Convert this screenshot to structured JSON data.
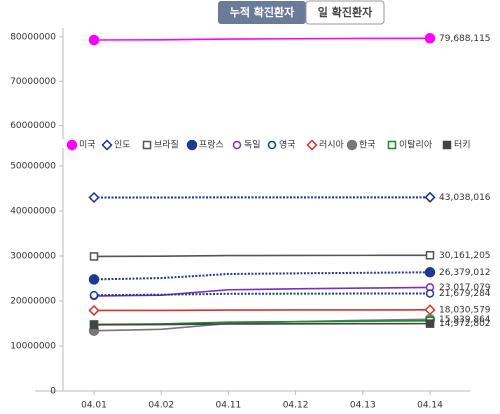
{
  "buttons": [
    "누적 확진환자",
    "일 확진환자"
  ],
  "chart_data": {
    "type": "line",
    "categories": [
      "04.01",
      "04.02",
      "04.11",
      "04.12",
      "04.13",
      "04.14"
    ],
    "ylim": [
      0,
      54000000
    ],
    "yticks": [
      0,
      10000000,
      20000000,
      30000000,
      40000000,
      50000000
    ],
    "y2lim": [
      57000000,
      82000000
    ],
    "y2ticks": [
      60000000,
      70000000,
      80000000
    ],
    "series": [
      {
        "name": "미국",
        "color": "#ff00ff",
        "marker": "circle-filled",
        "line_style": "solid",
        "axis": "y2",
        "values": [
          79300000,
          79350000,
          79500000,
          79580000,
          79640000,
          79688115
        ],
        "value_labels": [
          null,
          null,
          null,
          null,
          null,
          "79,688,115"
        ]
      },
      {
        "name": "인도",
        "color": "#1a2fa0",
        "marker": "diamond-hollow",
        "line_style": "dotted",
        "values": [
          43000000,
          43005000,
          43030000,
          43033000,
          43036000,
          43038016
        ],
        "value_labels": [
          null,
          null,
          null,
          null,
          null,
          "43,038,016"
        ]
      },
      {
        "name": "브라질",
        "color": "#555555",
        "marker": "square-hollow",
        "line_style": "solid",
        "values": [
          29900000,
          29950000,
          30100000,
          30120000,
          30140000,
          30161205
        ],
        "value_labels": [
          null,
          null,
          null,
          null,
          null,
          "30,161,205"
        ]
      },
      {
        "name": "프랑스",
        "color": "#1f3a93",
        "marker": "circle-filled",
        "line_style": "dotted",
        "values": [
          24800000,
          25100000,
          26000000,
          26150000,
          26260000,
          26379012
        ],
        "value_labels": [
          null,
          null,
          null,
          null,
          null,
          "26,379,012"
        ]
      },
      {
        "name": "독일",
        "color": "#7b2fbf",
        "marker": "circle-hollow",
        "line_style": "solid",
        "values": [
          21100000,
          21300000,
          22500000,
          22700000,
          22870000,
          23017079
        ],
        "value_labels": [
          null,
          null,
          null,
          null,
          null,
          "23,017,079"
        ]
      },
      {
        "name": "영국",
        "color": "#1e3f8a",
        "marker": "circle-hollow",
        "line_style": "dotted",
        "values": [
          21300000,
          21400000,
          21600000,
          21630000,
          21660000,
          21679284
        ],
        "value_labels": [
          null,
          null,
          null,
          null,
          null,
          "21,679,284"
        ]
      },
      {
        "name": "러시아",
        "color": "#d9312b",
        "marker": "diamond-hollow",
        "line_style": "solid",
        "values": [
          17900000,
          17910000,
          17990000,
          18005000,
          18018000,
          18030579
        ],
        "value_labels": [
          null,
          null,
          null,
          null,
          null,
          "18,030,579"
        ]
      },
      {
        "name": "한국",
        "color": "#777777",
        "marker": "circle-filled",
        "line_style": "solid",
        "values": [
          13400000,
          13700000,
          15000000,
          15400000,
          15700000,
          15939864
        ],
        "value_labels": [
          null,
          null,
          null,
          null,
          null,
          "15,939,864"
        ]
      },
      {
        "name": "이탈리아",
        "color": "#1a8a2a",
        "marker": "square-hollow",
        "line_style": "solid",
        "values": [
          14800000,
          14900000,
          15300000,
          15400000,
          15500000,
          15600000
        ]
      },
      {
        "name": "터키",
        "color": "#444444",
        "marker": "square-filled",
        "line_style": "solid",
        "values": [
          14700000,
          14750000,
          14900000,
          14930000,
          14950000,
          14972802
        ],
        "value_labels": [
          null,
          null,
          null,
          null,
          null,
          "14,972,802"
        ]
      }
    ]
  }
}
